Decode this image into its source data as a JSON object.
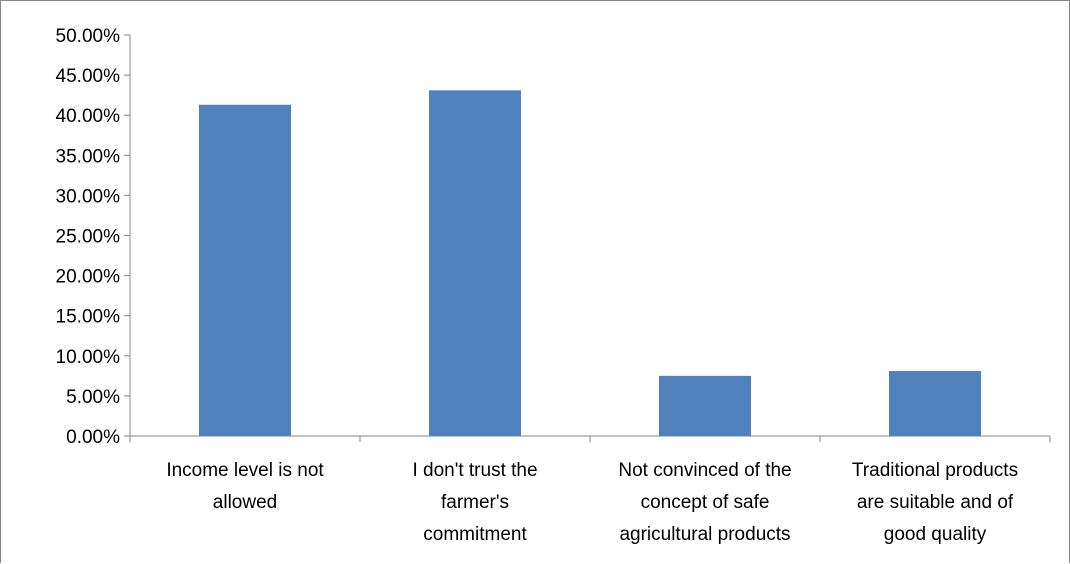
{
  "chart_data": {
    "type": "bar",
    "categories": [
      [
        "Income level is not",
        "allowed"
      ],
      [
        "I don't trust the",
        "farmer's",
        "commitment"
      ],
      [
        "Not convinced of the",
        "concept of safe",
        "agricultural products"
      ],
      [
        "Traditional products",
        "are suitable and of",
        "good quality"
      ]
    ],
    "values": [
      41.3,
      43.1,
      7.5,
      8.1
    ],
    "ylim": [
      0,
      50
    ],
    "ytick_labels": [
      "0.00%",
      "5.00%",
      "10.00%",
      "15.00%",
      "20.00%",
      "25.00%",
      "30.00%",
      "35.00%",
      "40.00%",
      "45.00%",
      "50.00%"
    ],
    "bar_color": "#4F81BD",
    "grid": false,
    "legend": "none"
  }
}
